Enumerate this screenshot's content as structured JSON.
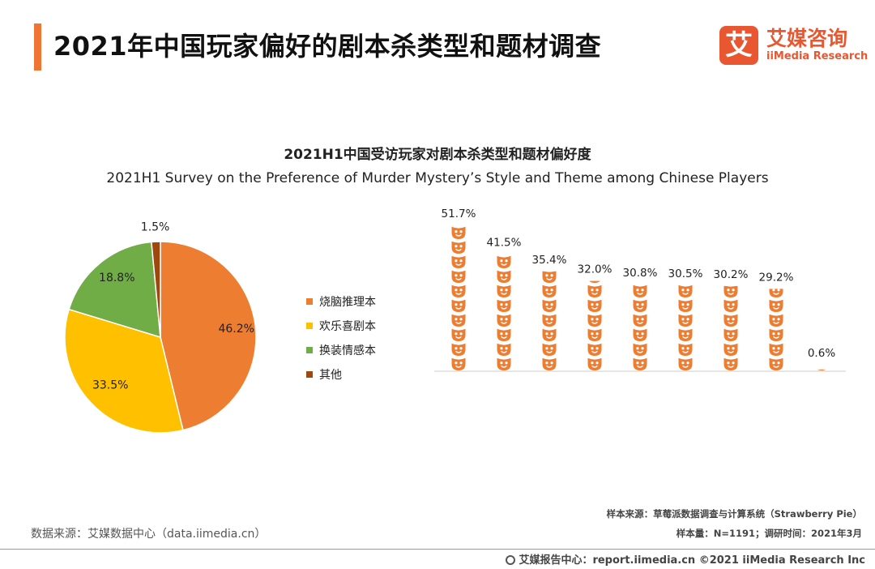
{
  "header": {
    "title": "2021年中国玩家偏好的剧本杀类型和题材调查",
    "brand_cn": "艾媒咨询",
    "brand_en": "iiMedia Research",
    "brand_logo_char": "艾",
    "accent_color": "#ee7533",
    "brand_color": "#e8572f"
  },
  "chart_data": [
    {
      "type": "pie",
      "title": "2021H1中国受访玩家对剧本杀类型和题材偏好度",
      "subtitle": "2021H1 Survey on the Preference of Murder Mystery’s Style and Theme among Chinese Players",
      "categories": [
        "烧脑推理本",
        "欢乐喜剧本",
        "换装情感本",
        "其他"
      ],
      "values": [
        46.2,
        33.5,
        18.8,
        1.5
      ],
      "labels": [
        "46.2%",
        "33.5%",
        "18.8%",
        "1.5%"
      ],
      "colors": [
        "#ed7d31",
        "#ffc000",
        "#70ad47",
        "#9e480e"
      ],
      "legend_position": "right"
    },
    {
      "type": "bar",
      "style": "pictograph",
      "values": [
        51.7,
        41.5,
        35.4,
        32.0,
        30.8,
        30.5,
        30.2,
        29.2,
        0.6
      ],
      "labels": [
        "51.7%",
        "41.5%",
        "35.4%",
        "32.0%",
        "30.8%",
        "30.5%",
        "30.2%",
        "29.2%",
        "0.6%"
      ],
      "color": "#ed7d31",
      "icon": "theater-mask-icon",
      "ylim": [
        0,
        51.7
      ]
    }
  ],
  "footer": {
    "source_left": "数据来源：艾媒数据中心（data.iimedia.cn）",
    "sample_source": "样本来源：草莓派数据调查与计算系统（Strawberry Pie）",
    "sample_size": "样本量：N=1191；调研时间：2021年3月",
    "copyright": "艾媒报告中心：report.iimedia.cn  ©2021  iiMedia Research Inc"
  }
}
